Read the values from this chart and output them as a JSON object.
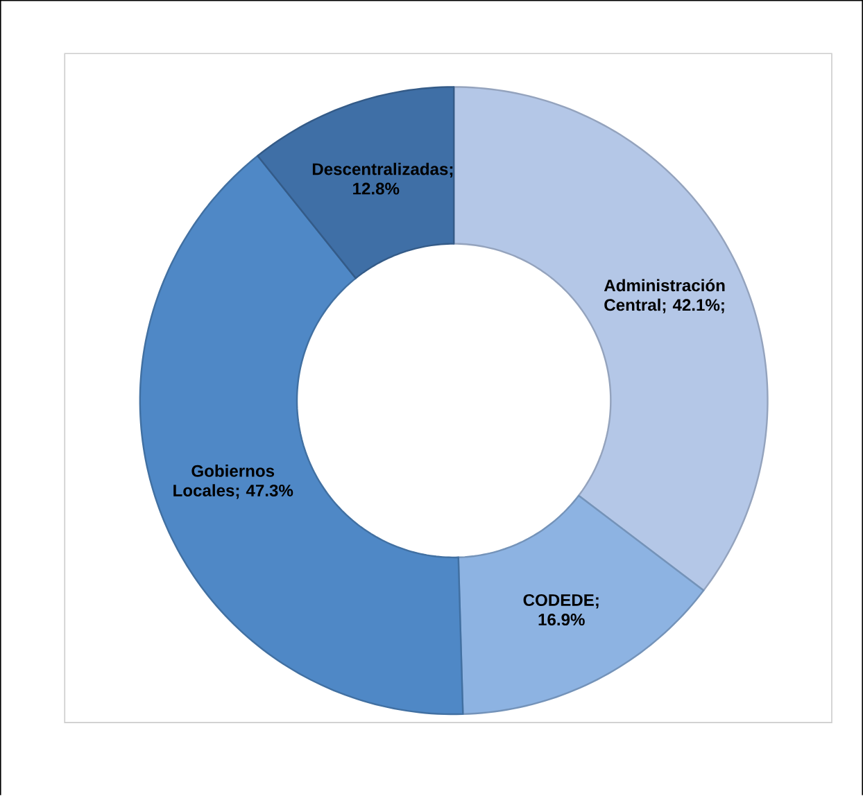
{
  "chart_data": {
    "type": "donut",
    "categories": [
      "Administración Central",
      "CODEDE",
      "Gobiernos Locales",
      "Descentralizadas"
    ],
    "values": [
      42.1,
      16.9,
      47.3,
      12.8
    ],
    "value_labels": [
      "; 42.1%;",
      "; 16.9%",
      "; 47.3%",
      "; 12.8%"
    ],
    "colors": [
      "#b4c7e7",
      "#8db3e2",
      "#4f88c6",
      "#3f6fa6"
    ]
  }
}
